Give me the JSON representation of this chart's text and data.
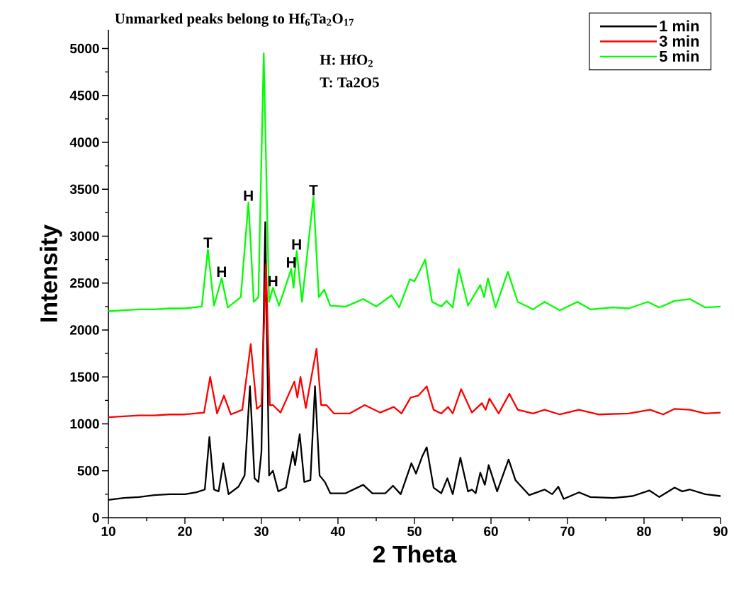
{
  "chart_data": {
    "type": "line",
    "xlabel": "2 Theta",
    "ylabel": "Intensity",
    "xlim": [
      10,
      90
    ],
    "ylim": [
      0,
      5200
    ],
    "xticks": [
      10,
      20,
      30,
      40,
      50,
      60,
      70,
      80,
      90
    ],
    "yticks": [
      0,
      500,
      1000,
      1500,
      2000,
      2500,
      3000,
      3500,
      4000,
      4500,
      5000
    ],
    "legend": "top right",
    "marker": "none",
    "line_style": "solid",
    "annotations": [
      "Unmarked peaks belong to Hf$_{6}$Ta$_{2}$O$_{17}$",
      "H: HfO$_{2}$",
      "T: Ta2O5",
      {
        "text": "T",
        "x": 23.0,
        "y": 2860
      },
      {
        "text": "H",
        "x": 24.8,
        "y": 2550
      },
      {
        "text": "H",
        "x": 28.3,
        "y": 3360
      },
      {
        "text": "H",
        "x": 31.5,
        "y": 2450
      },
      {
        "text": "H",
        "x": 33.9,
        "y": 2650
      },
      {
        "text": "H",
        "x": 34.6,
        "y": 2840
      },
      {
        "text": "T",
        "x": 36.8,
        "y": 3420
      }
    ],
    "series": [
      {
        "name": "1 min",
        "color": "#000000",
        "x": [
          10,
          12,
          14,
          16,
          18,
          20,
          21.5,
          22.6,
          23.2,
          23.8,
          24.4,
          25.0,
          25.7,
          27.0,
          27.8,
          28.5,
          29.1,
          29.6,
          30.0,
          30.5,
          31.0,
          31.5,
          32.2,
          33.2,
          34.1,
          34.4,
          35.0,
          35.6,
          36.4,
          37.0,
          37.6,
          38.3,
          39.0,
          41.0,
          43.3,
          44.5,
          46.2,
          47.2,
          48.2,
          49.6,
          50.2,
          51.0,
          51.6,
          52.5,
          53.5,
          54.3,
          55.0,
          56.0,
          57.0,
          57.5,
          58.0,
          58.6,
          59.2,
          59.7,
          60.8,
          62.3,
          63.2,
          65.0,
          67.0,
          68.0,
          68.8,
          69.5,
          71.5,
          73.0,
          76.0,
          78.5,
          80.7,
          82.0,
          84.0,
          85.0,
          86.0,
          88.0,
          90.0
        ],
        "values": [
          190,
          210,
          220,
          240,
          250,
          250,
          270,
          300,
          860,
          300,
          280,
          580,
          250,
          330,
          450,
          1400,
          420,
          380,
          700,
          3150,
          450,
          500,
          280,
          320,
          700,
          560,
          890,
          380,
          400,
          1400,
          450,
          380,
          260,
          260,
          350,
          260,
          260,
          340,
          250,
          580,
          470,
          650,
          750,
          320,
          260,
          420,
          250,
          640,
          280,
          300,
          260,
          480,
          350,
          560,
          280,
          620,
          400,
          240,
          300,
          250,
          330,
          200,
          270,
          220,
          210,
          230,
          290,
          220,
          320,
          280,
          300,
          250,
          230
        ]
      },
      {
        "name": "3 min",
        "color": "#ff0000",
        "x": [
          10,
          12,
          14,
          16,
          18,
          20,
          22.5,
          23.3,
          24.2,
          25.1,
          26.0,
          27.5,
          28.6,
          29.4,
          30.0,
          30.6,
          31.1,
          31.5,
          32.5,
          34.3,
          34.7,
          35.1,
          35.8,
          37.2,
          37.8,
          38.5,
          39.5,
          41.5,
          43.5,
          45.5,
          47.3,
          48.3,
          49.5,
          50.5,
          51.6,
          52.5,
          53.5,
          54.4,
          55.0,
          56.1,
          57.5,
          58.8,
          59.3,
          59.8,
          61.0,
          62.4,
          63.5,
          65.5,
          67.0,
          69.0,
          71.5,
          74.0,
          78.0,
          80.8,
          82.5,
          84.0,
          86.0,
          88.0,
          90.0
        ],
        "values": [
          1070,
          1080,
          1090,
          1090,
          1100,
          1100,
          1120,
          1500,
          1110,
          1300,
          1100,
          1150,
          1850,
          1160,
          1200,
          2700,
          1200,
          1200,
          1120,
          1450,
          1280,
          1500,
          1170,
          1800,
          1200,
          1200,
          1110,
          1110,
          1200,
          1120,
          1180,
          1110,
          1280,
          1300,
          1400,
          1150,
          1110,
          1180,
          1110,
          1370,
          1120,
          1220,
          1150,
          1270,
          1110,
          1320,
          1150,
          1110,
          1150,
          1100,
          1150,
          1100,
          1110,
          1150,
          1100,
          1160,
          1150,
          1110,
          1120
        ]
      },
      {
        "name": "5 min",
        "color": "#00ff00",
        "x": [
          10,
          12,
          14,
          16,
          18,
          20,
          22.2,
          23.0,
          23.8,
          24.8,
          25.6,
          27.3,
          28.3,
          29.0,
          29.6,
          30.3,
          31.0,
          31.5,
          32.3,
          33.9,
          34.2,
          34.6,
          35.3,
          36.8,
          37.5,
          38.2,
          39.0,
          41.0,
          43.3,
          45.0,
          47.0,
          48.0,
          49.4,
          50.0,
          50.5,
          51.4,
          52.3,
          53.5,
          54.2,
          55.0,
          55.8,
          57.0,
          58.6,
          59.1,
          59.6,
          60.6,
          62.2,
          63.5,
          65.5,
          67.0,
          69.0,
          71.3,
          73.0,
          76.0,
          78.0,
          80.5,
          82.0,
          84.0,
          86.0,
          88.0,
          90.0
        ],
        "values": [
          2200,
          2210,
          2220,
          2220,
          2230,
          2230,
          2250,
          2860,
          2260,
          2550,
          2240,
          2350,
          3360,
          2300,
          2350,
          4950,
          2300,
          2450,
          2260,
          2650,
          2450,
          2840,
          2300,
          3420,
          2350,
          2430,
          2260,
          2250,
          2330,
          2250,
          2370,
          2240,
          2540,
          2520,
          2600,
          2750,
          2300,
          2250,
          2310,
          2240,
          2650,
          2260,
          2480,
          2350,
          2550,
          2240,
          2620,
          2300,
          2220,
          2300,
          2210,
          2300,
          2220,
          2240,
          2230,
          2300,
          2240,
          2310,
          2330,
          2240,
          2250
        ]
      }
    ]
  }
}
